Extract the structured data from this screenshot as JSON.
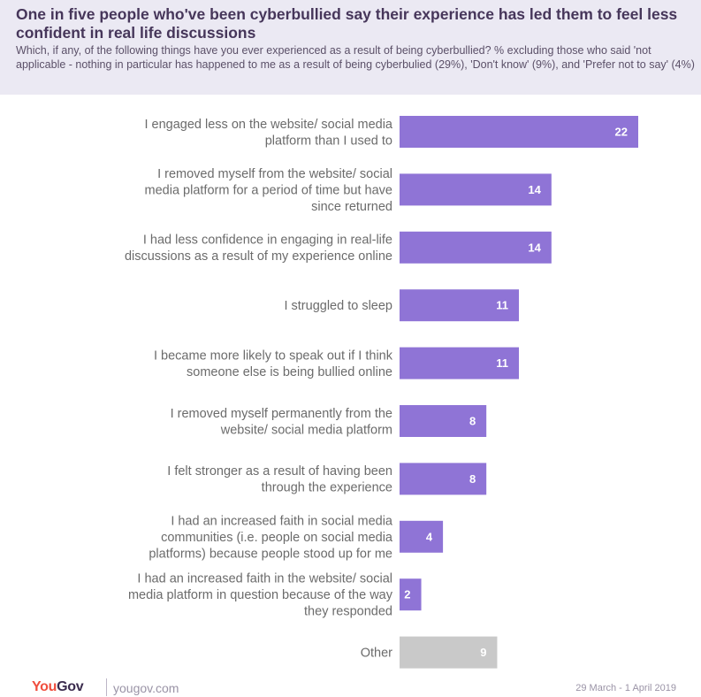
{
  "header": {
    "title": "One in five people who've been cyberbullied say their experience has led them to feel less confident in real life discussions",
    "subtitle": "Which, if any, of the following things have you ever experienced as a result of being cyberbullied? % excluding those who said 'not applicable - nothing in particular has happened to me  as a result of being cyberbulied (29%), 'Don't know' (9%), and 'Prefer not to say' (4%)"
  },
  "chart_data": {
    "type": "bar",
    "orientation": "horizontal",
    "categories": [
      "I engaged less on the website/ social media platform than I used to",
      "I removed myself from the website/ social media platform for a period of time but have since returned",
      "I had less confidence in engaging in real-life discussions as a result of my experience online",
      "I struggled to sleep",
      "I became more likely to speak out if I think someone else is being bullied online",
      "I removed myself permanently from the website/ social media platform",
      "I felt stronger as a result of having been through the experience",
      "I had an increased faith in social media communities (i.e. people on social media platforms) because people stood up for me",
      "I had an increased faith in the website/ social media platform in question because of the way they responded",
      "Other"
    ],
    "values": [
      22,
      14,
      14,
      11,
      11,
      8,
      8,
      4,
      2,
      9
    ],
    "label_lines": [
      [
        "I engaged less on the website/ social media",
        "platform than I used to"
      ],
      [
        "I removed myself from the website/ social",
        "media platform for a period of time but have",
        "since returned"
      ],
      [
        "I had less confidence in engaging in real-life",
        "discussions as a result of my experience online"
      ],
      [
        "I struggled to sleep"
      ],
      [
        "I became more likely to speak out if I think",
        "someone else is being bullied online"
      ],
      [
        "I removed myself permanently from the",
        "website/ social media platform"
      ],
      [
        "I felt stronger as a result of having been",
        "through the experience"
      ],
      [
        "I had an increased faith in social media",
        "communities (i.e. people on social media",
        "platforms) because people stood up for me"
      ],
      [
        "I had an increased faith in the website/ social",
        "media platform in question because of the way",
        "they responded"
      ],
      [
        "Other"
      ]
    ],
    "bar_colors": [
      "#8f74d6",
      "#8f74d6",
      "#8f74d6",
      "#8f74d6",
      "#8f74d6",
      "#8f74d6",
      "#8f74d6",
      "#8f74d6",
      "#8f74d6",
      "#c9c9c9"
    ],
    "xlim": [
      0,
      22
    ],
    "grid": false,
    "legend": "none"
  },
  "footer": {
    "logo_you": "You",
    "logo_gov": "Gov",
    "url": "yougov.com",
    "date": "29 March - 1 April 2019"
  },
  "colors": {
    "bar": "#8f74d6",
    "bar_other": "#c9c9c9",
    "header_bg": "#ebe9f3",
    "title": "#46365a",
    "brand_you": "#f04e3e",
    "brand_gov": "#3b2c4e"
  }
}
